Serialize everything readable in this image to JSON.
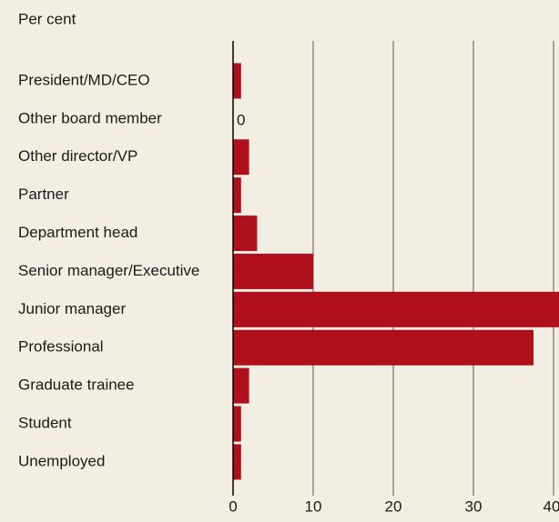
{
  "chart_data": {
    "type": "barh",
    "subtitle": "Per cent",
    "categories": [
      "President/MD/CEO",
      "Other board member",
      "Other director/VP",
      "Partner",
      "Department head",
      "Senior manager/Executive",
      "Junior manager",
      "Professional",
      "Graduate trainee",
      "Student",
      "Unemployed"
    ],
    "values": [
      1,
      0,
      2,
      1,
      3,
      10,
      41,
      37.5,
      2,
      1,
      1
    ],
    "color": "#b0101c",
    "xlim": [
      0,
      40
    ],
    "xticks": [
      0,
      10,
      20,
      30,
      40
    ],
    "grid": true
  }
}
